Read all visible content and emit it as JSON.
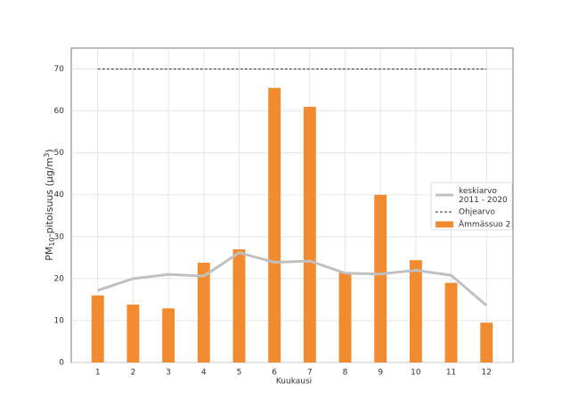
{
  "chart_data": {
    "type": "bar",
    "ylabel_parts": [
      "PM",
      "10",
      "-pitoisuus (µg/m",
      "3",
      ")"
    ],
    "xlabel": "Kuukausi",
    "x": [
      1,
      2,
      3,
      4,
      5,
      6,
      7,
      8,
      9,
      10,
      11,
      12
    ],
    "xlim": [
      0.25,
      12.75
    ],
    "xticks": [
      1,
      2,
      3,
      4,
      5,
      6,
      7,
      8,
      9,
      10,
      11,
      12
    ],
    "ylim": [
      0,
      75
    ],
    "yticks": [
      0,
      10,
      20,
      30,
      40,
      50,
      60,
      70
    ],
    "grid": true,
    "legend": "right",
    "series": [
      {
        "name": "keskiarvo\n2011 - 2020",
        "type": "line",
        "color": "#c0c0c0",
        "values": [
          17.2,
          20,
          21,
          20.6,
          26.2,
          23.9,
          24.2,
          21.3,
          21.1,
          22,
          20.8,
          13.6
        ]
      },
      {
        "name": "Ohjearvo",
        "type": "dashed",
        "color": "#333333",
        "values": [
          70,
          70,
          70,
          70,
          70,
          70,
          70,
          70,
          70,
          70,
          70,
          70
        ]
      },
      {
        "name": "Ämmässuo 2",
        "type": "bar",
        "color": "#f28a30",
        "values": [
          16,
          13.8,
          12.9,
          23.8,
          27,
          65.5,
          61,
          21.5,
          40,
          24.4,
          19,
          9.5
        ]
      }
    ]
  }
}
